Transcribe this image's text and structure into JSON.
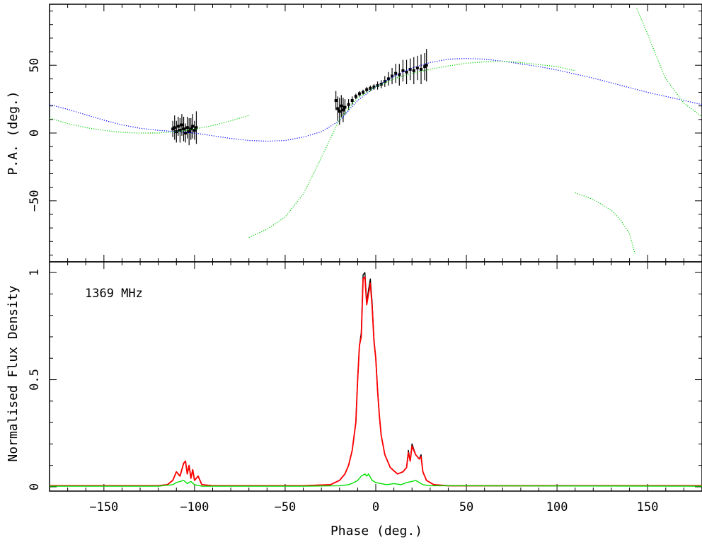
{
  "chart_data": [
    {
      "type": "scatter",
      "panel": "top",
      "ylabel": "P.A. (deg.)",
      "xlim": [
        -180,
        180
      ],
      "ylim": [
        -95,
        95
      ],
      "yticks": [
        -50,
        0,
        50
      ],
      "ytick_labels": [
        "−50",
        "0",
        "50"
      ],
      "series": [
        {
          "style": "points-with-error-bars",
          "color": "#000000",
          "points": [
            [
              -112,
              3,
              6
            ],
            [
              -111,
              4,
              9
            ],
            [
              -110,
              1,
              8
            ],
            [
              -109,
              5,
              7
            ],
            [
              -108,
              2,
              9
            ],
            [
              -107,
              6,
              8
            ],
            [
              -106,
              3,
              9
            ],
            [
              -105,
              0,
              7
            ],
            [
              -104,
              4,
              8
            ],
            [
              -103,
              1,
              10
            ],
            [
              -102,
              3,
              8
            ],
            [
              -101,
              5,
              9
            ],
            [
              -100,
              2,
              7
            ],
            [
              -99,
              4,
              12
            ],
            [
              -22,
              24,
              7
            ],
            [
              -21,
              18,
              9
            ],
            [
              -20,
              16,
              10
            ],
            [
              -19,
              20,
              8
            ],
            [
              -18,
              17,
              9
            ],
            [
              -17,
              19,
              6
            ],
            [
              -15,
              21,
              4
            ],
            [
              -13,
              24,
              3
            ],
            [
              -11,
              27,
              2
            ],
            [
              -9,
              29,
              2
            ],
            [
              -7,
              30,
              2
            ],
            [
              -5,
              32,
              2
            ],
            [
              -3,
              33,
              2
            ],
            [
              -1,
              34,
              2
            ],
            [
              1,
              35,
              3
            ],
            [
              3,
              36,
              3
            ],
            [
              5,
              38,
              4
            ],
            [
              7,
              40,
              5
            ],
            [
              9,
              42,
              6
            ],
            [
              11,
              44,
              7
            ],
            [
              13,
              43,
              8
            ],
            [
              15,
              46,
              8
            ],
            [
              17,
              45,
              9
            ],
            [
              19,
              47,
              8
            ],
            [
              21,
              46,
              10
            ],
            [
              23,
              48,
              9
            ],
            [
              25,
              47,
              11
            ],
            [
              27,
              49,
              10
            ],
            [
              28,
              50,
              12
            ]
          ]
        },
        {
          "style": "dotted-curve",
          "color": "#0000ff",
          "x": [
            -180,
            -170,
            -160,
            -150,
            -140,
            -130,
            -120,
            -110,
            -100,
            -90,
            -80,
            -70,
            -60,
            -50,
            -40,
            -30,
            -20,
            -10,
            0,
            10,
            20,
            30,
            40,
            50,
            60,
            70,
            80,
            90,
            100,
            110,
            120,
            130,
            140,
            150,
            160,
            170,
            180
          ],
          "y": [
            21,
            17.5,
            13.5,
            9.5,
            6,
            3.5,
            2,
            1,
            0,
            -2,
            -4,
            -5.5,
            -6,
            -5.5,
            -3,
            1,
            9,
            24,
            34,
            42,
            48,
            52,
            54.5,
            55,
            54.5,
            53,
            51,
            49,
            46.5,
            43.5,
            40.5,
            37,
            33.5,
            30,
            27,
            24,
            21
          ]
        },
        {
          "style": "dotted-curve",
          "color": "#00d000",
          "x": [
            -180,
            -170,
            -160,
            -150,
            -140,
            -130,
            -120,
            -110,
            -100,
            -90,
            -80,
            -70
          ],
          "y": [
            11,
            7,
            4,
            2,
            0.5,
            0,
            0,
            1,
            3,
            5.5,
            9,
            13
          ]
        },
        {
          "style": "dotted-curve",
          "color": "#00d000",
          "x": [
            -70,
            -60,
            -50,
            -40,
            -30,
            -20,
            -10,
            0,
            10,
            20,
            30,
            40,
            50,
            60,
            70,
            80,
            90,
            100,
            110
          ],
          "y": [
            -77,
            -71,
            -62,
            -45,
            -18,
            10,
            26,
            34,
            40,
            44,
            47,
            49.5,
            51.5,
            52.5,
            53,
            52,
            50.5,
            49,
            46
          ]
        },
        {
          "style": "dotted-curve",
          "color": "#00d000",
          "x": [
            110,
            120,
            130,
            135,
            140,
            143
          ],
          "y": [
            -44,
            -49,
            -57,
            -64,
            -74,
            -89
          ]
        },
        {
          "style": "dotted-curve",
          "color": "#00d000",
          "x": [
            144,
            150,
            155,
            160,
            170,
            180
          ],
          "y": [
            92,
            73,
            56,
            40,
            22,
            12
          ]
        }
      ]
    },
    {
      "type": "line",
      "panel": "bottom",
      "ylabel": "Normalised Flux Density",
      "xlabel": "Phase (deg.)",
      "annotation": "1369 MHz",
      "xlim": [
        -180,
        180
      ],
      "ylim": [
        -0.02,
        1.05
      ],
      "xticks": [
        -150,
        -100,
        -50,
        0,
        50,
        100,
        150
      ],
      "xtick_labels": [
        "−150",
        "−100",
        "−50",
        "0",
        "50",
        "100",
        "150"
      ],
      "yticks": [
        0,
        0.5,
        1
      ],
      "ytick_labels": [
        "0",
        "0.5",
        "1"
      ],
      "series": [
        {
          "color": "#000000",
          "x": [
            -180,
            -120,
            -115,
            -112,
            -110,
            -108,
            -106,
            -105,
            -104,
            -103,
            -102,
            -101,
            -100,
            -98,
            -96,
            -90,
            -40,
            -25,
            -20,
            -17,
            -15,
            -13,
            -11,
            -10,
            -9,
            -8,
            -7,
            -6,
            -5,
            -4,
            -3,
            -2,
            -1,
            0,
            1,
            2,
            3,
            5,
            8,
            12,
            15,
            17,
            18,
            19,
            20,
            22,
            24,
            25,
            26,
            28,
            32,
            40,
            180
          ],
          "y": [
            0.005,
            0.005,
            0.01,
            0.03,
            0.07,
            0.05,
            0.11,
            0.12,
            0.06,
            0.1,
            0.04,
            0.08,
            0.03,
            0.05,
            0.01,
            0.005,
            0.005,
            0.01,
            0.03,
            0.06,
            0.1,
            0.17,
            0.3,
            0.5,
            0.66,
            0.72,
            0.99,
            1.0,
            0.86,
            0.92,
            0.97,
            0.86,
            0.69,
            0.6,
            0.45,
            0.33,
            0.24,
            0.15,
            0.09,
            0.06,
            0.07,
            0.09,
            0.17,
            0.12,
            0.2,
            0.15,
            0.13,
            0.15,
            0.07,
            0.03,
            0.01,
            0.005,
            0.005
          ]
        },
        {
          "color": "#ff0000",
          "x": [
            -180,
            -120,
            -115,
            -112,
            -110,
            -108,
            -106,
            -105,
            -104,
            -103,
            -102,
            -101,
            -100,
            -98,
            -96,
            -90,
            -40,
            -25,
            -20,
            -17,
            -15,
            -13,
            -11,
            -10,
            -9,
            -8,
            -7,
            -6,
            -5,
            -4,
            -3,
            -2,
            -1,
            0,
            1,
            2,
            3,
            5,
            8,
            12,
            15,
            17,
            18,
            19,
            20,
            22,
            24,
            25,
            26,
            28,
            32,
            40,
            180
          ],
          "y": [
            0.005,
            0.005,
            0.01,
            0.03,
            0.07,
            0.05,
            0.11,
            0.12,
            0.06,
            0.1,
            0.04,
            0.08,
            0.03,
            0.05,
            0.01,
            0.005,
            0.005,
            0.01,
            0.03,
            0.06,
            0.1,
            0.17,
            0.3,
            0.5,
            0.66,
            0.7,
            0.97,
            0.98,
            0.85,
            0.9,
            0.95,
            0.84,
            0.68,
            0.6,
            0.45,
            0.33,
            0.24,
            0.15,
            0.09,
            0.06,
            0.07,
            0.09,
            0.16,
            0.12,
            0.19,
            0.15,
            0.13,
            0.14,
            0.07,
            0.03,
            0.01,
            0.005,
            0.005
          ]
        },
        {
          "color": "#00e000",
          "x": [
            -180,
            -120,
            -112,
            -110,
            -106,
            -104,
            -102,
            -100,
            -96,
            -40,
            -20,
            -15,
            -12,
            -10,
            -8,
            -6,
            -5,
            -4,
            -2,
            0,
            3,
            6,
            10,
            14,
            17,
            20,
            22,
            24,
            26,
            30,
            180
          ],
          "y": [
            0.003,
            0.003,
            0.01,
            0.02,
            0.03,
            0.015,
            0.025,
            0.01,
            0.003,
            0.003,
            0.005,
            0.01,
            0.02,
            0.03,
            0.05,
            0.06,
            0.05,
            0.06,
            0.03,
            0.02,
            0.015,
            0.01,
            0.015,
            0.01,
            0.02,
            0.025,
            0.03,
            0.02,
            0.01,
            0.005,
            0.003
          ]
        }
      ]
    }
  ]
}
